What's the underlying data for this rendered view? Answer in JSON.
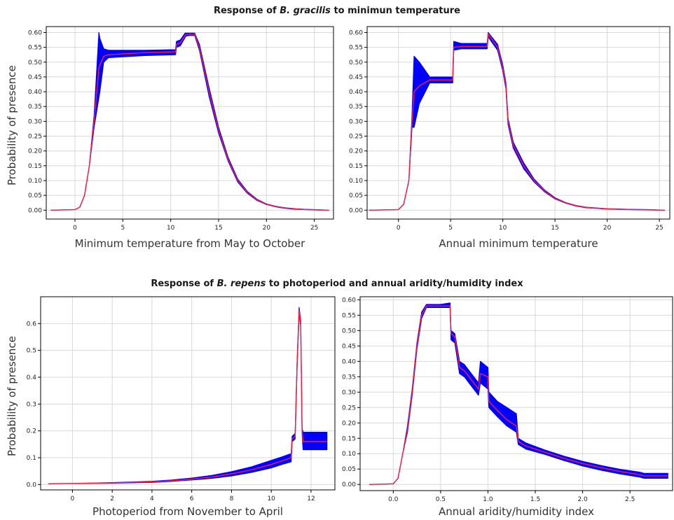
{
  "top_title": {
    "pre": "Response of ",
    "species": "B. gracilis",
    "post": " to minimun temperature"
  },
  "bottom_title": {
    "pre": "Response of ",
    "species": "B. repens",
    "post": " to photoperiod and annual aridity/humidity index"
  },
  "ylabel_shared": "Probability of presence",
  "colors": {
    "band": "#0000ff",
    "mean": "#ff1a3c",
    "grid": "#d8d8d8",
    "axis": "#000000"
  },
  "chart_data": [
    {
      "type": "line",
      "xlabel": "Minimum temperature  from May to October",
      "xlim": [
        -3,
        27
      ],
      "ylim": [
        -0.03,
        0.62
      ],
      "xticks": [
        0,
        5,
        10,
        15,
        20,
        25
      ],
      "yticks": [
        0.0,
        0.05,
        0.1,
        0.15,
        0.2,
        0.25,
        0.3,
        0.35,
        0.4,
        0.45,
        0.5,
        0.55,
        0.6
      ],
      "ytick_labels": [
        "0.00",
        "0.05",
        "0.10",
        "0.15",
        "0.20",
        "0.25",
        "0.30",
        "0.35",
        "0.40",
        "0.45",
        "0.50",
        "0.55",
        "0.60"
      ],
      "grid": true,
      "x": [
        -2.5,
        0,
        0.5,
        1,
        1.5,
        2,
        2.5,
        2.6,
        3,
        3.5,
        5,
        7.3,
        10.5,
        10.6,
        11,
        11.5,
        11.6,
        12,
        12.5,
        13,
        14,
        15,
        16,
        17,
        18,
        19,
        20,
        21,
        22,
        23,
        24,
        25,
        26.5
      ],
      "mean": [
        0.0,
        0.002,
        0.01,
        0.05,
        0.15,
        0.3,
        0.48,
        0.49,
        0.52,
        0.525,
        0.528,
        0.532,
        0.535,
        0.56,
        0.565,
        0.59,
        0.593,
        0.594,
        0.594,
        0.55,
        0.4,
        0.27,
        0.17,
        0.1,
        0.06,
        0.035,
        0.02,
        0.012,
        0.007,
        0.004,
        0.002,
        0.001,
        0.0
      ],
      "lower": [
        0.0,
        0.002,
        0.01,
        0.05,
        0.15,
        0.28,
        0.38,
        0.4,
        0.5,
        0.515,
        0.518,
        0.522,
        0.525,
        0.55,
        0.555,
        0.583,
        0.588,
        0.59,
        0.59,
        0.54,
        0.385,
        0.26,
        0.165,
        0.095,
        0.057,
        0.033,
        0.019,
        0.011,
        0.006,
        0.003,
        0.002,
        0.001,
        0.0
      ],
      "upper": [
        0.0,
        0.002,
        0.01,
        0.05,
        0.15,
        0.32,
        0.6,
        0.58,
        0.545,
        0.54,
        0.54,
        0.54,
        0.542,
        0.57,
        0.575,
        0.598,
        0.598,
        0.598,
        0.598,
        0.56,
        0.415,
        0.28,
        0.178,
        0.105,
        0.063,
        0.037,
        0.021,
        0.013,
        0.008,
        0.005,
        0.003,
        0.002,
        0.0
      ]
    },
    {
      "type": "line",
      "xlabel": "Annual minimum temperature",
      "xlim": [
        -3,
        26
      ],
      "ylim": [
        -0.03,
        0.62
      ],
      "xticks": [
        0,
        5,
        10,
        15,
        20,
        25
      ],
      "yticks": [
        0.0,
        0.05,
        0.1,
        0.15,
        0.2,
        0.25,
        0.3,
        0.35,
        0.4,
        0.45,
        0.5,
        0.55,
        0.6
      ],
      "ytick_labels": [
        "0.00",
        "0.05",
        "0.10",
        "0.15",
        "0.20",
        "0.25",
        "0.30",
        "0.35",
        "0.40",
        "0.45",
        "0.50",
        "0.55",
        "0.60"
      ],
      "grid": true,
      "x": [
        -2.8,
        0,
        0.5,
        1,
        1.3,
        1.5,
        2,
        3,
        5.2,
        5.3,
        6,
        8.5,
        8.6,
        9.5,
        10,
        10.3,
        10.5,
        11,
        12,
        13,
        14,
        15,
        16,
        17,
        18,
        20,
        22,
        24,
        25.5
      ],
      "mean": [
        0.0,
        0.002,
        0.02,
        0.1,
        0.3,
        0.4,
        0.42,
        0.44,
        0.44,
        0.55,
        0.553,
        0.553,
        0.595,
        0.55,
        0.48,
        0.42,
        0.3,
        0.22,
        0.15,
        0.1,
        0.065,
        0.04,
        0.025,
        0.015,
        0.009,
        0.004,
        0.002,
        0.001,
        0.0
      ],
      "lower": [
        0.0,
        0.002,
        0.02,
        0.1,
        0.28,
        0.28,
        0.36,
        0.43,
        0.43,
        0.54,
        0.545,
        0.545,
        0.585,
        0.54,
        0.47,
        0.41,
        0.29,
        0.21,
        0.14,
        0.095,
        0.062,
        0.038,
        0.024,
        0.014,
        0.008,
        0.004,
        0.002,
        0.001,
        0.0
      ],
      "upper": [
        0.0,
        0.002,
        0.02,
        0.1,
        0.32,
        0.52,
        0.5,
        0.45,
        0.45,
        0.57,
        0.563,
        0.563,
        0.6,
        0.56,
        0.49,
        0.43,
        0.31,
        0.23,
        0.16,
        0.105,
        0.068,
        0.042,
        0.026,
        0.016,
        0.01,
        0.005,
        0.003,
        0.002,
        0.0
      ]
    },
    {
      "type": "line",
      "xlabel": "Photoperiod from November  to April",
      "xlim": [
        -1.6,
        13.2
      ],
      "ylim": [
        -0.02,
        0.7
      ],
      "xticks": [
        0,
        2,
        4,
        6,
        8,
        10,
        12
      ],
      "yticks": [
        0.0,
        0.1,
        0.2,
        0.3,
        0.4,
        0.5,
        0.6
      ],
      "ytick_labels": [
        "0.0",
        "0.1",
        "0.2",
        "0.3",
        "0.4",
        "0.5",
        "0.6"
      ],
      "grid": true,
      "x": [
        -1.2,
        0,
        2,
        4,
        5,
        6,
        7,
        8,
        9,
        10,
        10.5,
        11,
        11.05,
        11.2,
        11.3,
        11.4,
        11.48,
        11.55,
        11.6,
        11.65,
        11.7,
        12.8
      ],
      "mean": [
        0.003,
        0.004,
        0.006,
        0.01,
        0.014,
        0.02,
        0.028,
        0.04,
        0.055,
        0.075,
        0.087,
        0.1,
        0.17,
        0.18,
        0.45,
        0.65,
        0.6,
        0.2,
        0.16,
        0.16,
        0.16,
        0.16
      ],
      "lower": [
        0.003,
        0.004,
        0.005,
        0.008,
        0.012,
        0.017,
        0.023,
        0.032,
        0.045,
        0.062,
        0.074,
        0.085,
        0.16,
        0.17,
        0.44,
        0.64,
        0.59,
        0.19,
        0.13,
        0.13,
        0.13,
        0.13
      ],
      "upper": [
        0.003,
        0.004,
        0.007,
        0.012,
        0.017,
        0.024,
        0.034,
        0.048,
        0.066,
        0.09,
        0.102,
        0.115,
        0.18,
        0.19,
        0.46,
        0.66,
        0.61,
        0.21,
        0.195,
        0.195,
        0.195,
        0.195
      ]
    },
    {
      "type": "line",
      "xlabel": "Annual aridity/humidity index",
      "xlim": [
        -0.35,
        2.95
      ],
      "ylim": [
        -0.02,
        0.61
      ],
      "xticks": [
        0.0,
        0.5,
        1.0,
        1.5,
        2.0,
        2.5
      ],
      "xtick_labels": [
        "0.0",
        "0.5",
        "1.0",
        "1.5",
        "2.0",
        "2.5"
      ],
      "yticks": [
        0.0,
        0.05,
        0.1,
        0.15,
        0.2,
        0.25,
        0.3,
        0.35,
        0.4,
        0.45,
        0.5,
        0.55,
        0.6
      ],
      "ytick_labels": [
        "0.00",
        "0.05",
        "0.10",
        "0.15",
        "0.20",
        "0.25",
        "0.30",
        "0.35",
        "0.40",
        "0.45",
        "0.50",
        "0.55",
        "0.60"
      ],
      "grid": true,
      "x": [
        -0.25,
        0.0,
        0.05,
        0.1,
        0.15,
        0.2,
        0.25,
        0.3,
        0.35,
        0.4,
        0.5,
        0.6,
        0.61,
        0.65,
        0.7,
        0.75,
        0.8,
        0.9,
        0.92,
        1.0,
        1.01,
        1.1,
        1.2,
        1.3,
        1.32,
        1.4,
        1.6,
        1.8,
        2.0,
        2.2,
        2.4,
        2.6,
        2.65,
        2.9
      ],
      "mean": [
        0.0,
        0.002,
        0.02,
        0.1,
        0.18,
        0.3,
        0.45,
        0.55,
        0.58,
        0.58,
        0.58,
        0.58,
        0.49,
        0.48,
        0.38,
        0.37,
        0.35,
        0.31,
        0.36,
        0.35,
        0.27,
        0.24,
        0.21,
        0.19,
        0.14,
        0.125,
        0.105,
        0.085,
        0.068,
        0.054,
        0.042,
        0.032,
        0.028,
        0.028
      ],
      "lower": [
        0.0,
        0.002,
        0.02,
        0.1,
        0.17,
        0.29,
        0.44,
        0.54,
        0.575,
        0.575,
        0.575,
        0.575,
        0.47,
        0.46,
        0.36,
        0.35,
        0.33,
        0.29,
        0.33,
        0.31,
        0.25,
        0.22,
        0.19,
        0.17,
        0.13,
        0.115,
        0.098,
        0.078,
        0.06,
        0.046,
        0.034,
        0.024,
        0.02,
        0.02
      ],
      "upper": [
        0.0,
        0.002,
        0.02,
        0.1,
        0.19,
        0.31,
        0.46,
        0.56,
        0.585,
        0.585,
        0.585,
        0.59,
        0.5,
        0.49,
        0.4,
        0.39,
        0.37,
        0.33,
        0.4,
        0.38,
        0.3,
        0.27,
        0.25,
        0.23,
        0.15,
        0.135,
        0.112,
        0.092,
        0.075,
        0.061,
        0.049,
        0.04,
        0.036,
        0.036
      ]
    }
  ]
}
